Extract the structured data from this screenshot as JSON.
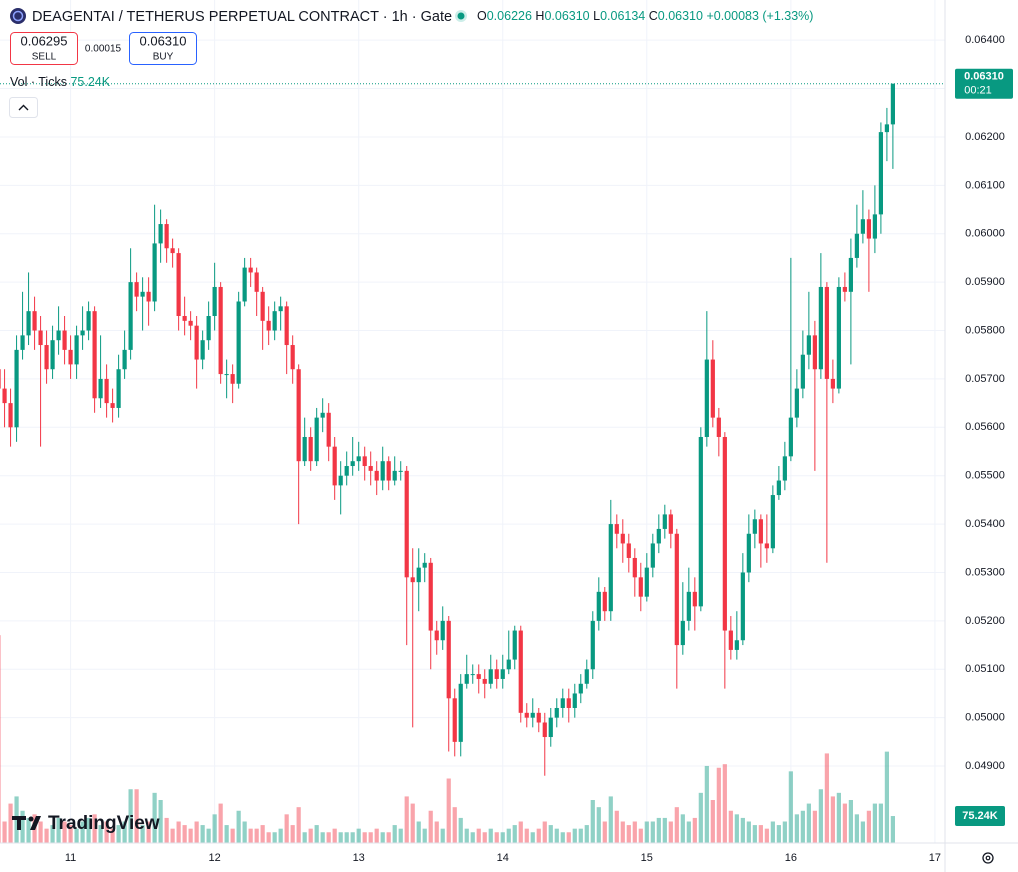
{
  "chart_data": {
    "type": "candlestick",
    "title": "DEAGENTAI / TETHERUS PERPETUAL CONTRACT · 1h · Gate",
    "ohlc_legend": [
      {
        "key": "O",
        "value": "0.06226"
      },
      {
        "key": "H",
        "value": "0.06310"
      },
      {
        "key": "L",
        "value": "0.06134"
      },
      {
        "key": "C",
        "value": "0.06310"
      }
    ],
    "change_text": "+0.00083 (+1.33%)",
    "sell": {
      "price": "0.06295",
      "label": "SELL"
    },
    "spread": "0.00015",
    "buy": {
      "price": "0.06310",
      "label": "BUY"
    },
    "volume_legend": "Vol · Ticks",
    "volume_last_label": "75.24K",
    "last_price_label": "0.06310",
    "countdown": "00:21",
    "logo": "TradingView",
    "up_color": "#089981",
    "down_color": "#f23645",
    "grid": true,
    "xlim": [
      10.51,
      17.07
    ],
    "xticks": [
      11,
      12,
      13,
      14,
      15,
      16,
      17
    ],
    "ylim": [
      0.04741,
      0.06483
    ],
    "yticks": [
      {
        "value": 0.064,
        "label": "0.06400"
      },
      {
        "value": 0.063,
        "label": "0.06300"
      },
      {
        "value": 0.062,
        "label": "0.06200"
      },
      {
        "value": 0.061,
        "label": "0.06100"
      },
      {
        "value": 0.06,
        "label": "0.06000"
      },
      {
        "value": 0.059,
        "label": "0.05900"
      },
      {
        "value": 0.058,
        "label": "0.05800"
      },
      {
        "value": 0.057,
        "label": "0.05700"
      },
      {
        "value": 0.056,
        "label": "0.05600"
      },
      {
        "value": 0.055,
        "label": "0.05500"
      },
      {
        "value": 0.054,
        "label": "0.05400"
      },
      {
        "value": 0.053,
        "label": "0.05300"
      },
      {
        "value": 0.052,
        "label": "0.05200"
      },
      {
        "value": 0.051,
        "label": "0.05100"
      },
      {
        "value": 0.05,
        "label": "0.05000"
      },
      {
        "value": 0.049,
        "label": "0.04900"
      }
    ],
    "volume_ylim": [
      0,
      600
    ],
    "x": [
      10.5,
      10.5417,
      10.5833,
      10.625,
      10.6667,
      10.7083,
      10.75,
      10.7917,
      10.8333,
      10.875,
      10.9167,
      10.9583,
      11,
      11.0417,
      11.0833,
      11.125,
      11.1667,
      11.2083,
      11.25,
      11.2917,
      11.3333,
      11.375,
      11.4167,
      11.4583,
      11.5,
      11.5417,
      11.5833,
      11.625,
      11.6667,
      11.7083,
      11.75,
      11.7917,
      11.8333,
      11.875,
      11.9167,
      11.9583,
      12,
      12.0417,
      12.0833,
      12.125,
      12.1667,
      12.2083,
      12.25,
      12.2917,
      12.3333,
      12.375,
      12.4167,
      12.4583,
      12.5,
      12.5417,
      12.5833,
      12.625,
      12.6667,
      12.7083,
      12.75,
      12.7917,
      12.8333,
      12.875,
      12.9167,
      12.9583,
      13,
      13.0417,
      13.0833,
      13.125,
      13.1667,
      13.2083,
      13.25,
      13.2917,
      13.3333,
      13.375,
      13.4167,
      13.4583,
      13.5,
      13.5417,
      13.5833,
      13.625,
      13.6667,
      13.7083,
      13.75,
      13.7917,
      13.8333,
      13.875,
      13.9167,
      13.9583,
      14,
      14.0417,
      14.0833,
      14.125,
      14.1667,
      14.2083,
      14.25,
      14.2917,
      14.3333,
      14.375,
      14.4167,
      14.4583,
      14.5,
      14.5417,
      14.5833,
      14.625,
      14.6667,
      14.7083,
      14.75,
      14.7917,
      14.8333,
      14.875,
      14.9167,
      14.9583,
      15,
      15.0417,
      15.0833,
      15.125,
      15.1667,
      15.2083,
      15.25,
      15.2917,
      15.3333,
      15.375,
      15.4167,
      15.4583,
      15.5,
      15.5417,
      15.5833,
      15.625,
      15.6667,
      15.7083,
      15.75,
      15.7917,
      15.8333,
      15.875,
      15.9167,
      15.9583,
      16,
      16.0417,
      16.0833,
      16.125,
      16.1667,
      16.2083,
      16.25,
      16.2917,
      16.3333,
      16.375,
      16.4167,
      16.4583,
      16.5,
      16.5417,
      16.5833,
      16.625,
      16.6667,
      16.7083
    ],
    "open": [
      0.0572,
      0.0568,
      0.0565,
      0.056,
      0.0576,
      0.0579,
      0.0584,
      0.058,
      0.0577,
      0.0572,
      0.0578,
      0.058,
      0.0576,
      0.0573,
      0.0579,
      0.058,
      0.0584,
      0.0566,
      0.057,
      0.0565,
      0.0564,
      0.0572,
      0.0576,
      0.059,
      0.0587,
      0.0588,
      0.0586,
      0.0598,
      0.0602,
      0.0597,
      0.0596,
      0.0583,
      0.0582,
      0.0581,
      0.0574,
      0.0578,
      0.0583,
      0.0589,
      0.0571,
      0.0571,
      0.0569,
      0.0586,
      0.0593,
      0.0592,
      0.0588,
      0.0582,
      0.058,
      0.0584,
      0.0585,
      0.0577,
      0.0572,
      0.0553,
      0.0558,
      0.0553,
      0.0562,
      0.0563,
      0.0556,
      0.0548,
      0.055,
      0.0552,
      0.0553,
      0.0554,
      0.0552,
      0.0551,
      0.0549,
      0.0553,
      0.0549,
      0.0551,
      0.0551,
      0.0529,
      0.0528,
      0.0531,
      0.0532,
      0.0518,
      0.0516,
      0.052,
      0.0504,
      0.0495,
      0.0507,
      0.0509,
      0.0509,
      0.0508,
      0.0507,
      0.051,
      0.0508,
      0.051,
      0.0512,
      0.0518,
      0.0501,
      0.05,
      0.0501,
      0.0499,
      0.0496,
      0.05,
      0.0502,
      0.0504,
      0.0502,
      0.0505,
      0.0507,
      0.051,
      0.052,
      0.0526,
      0.0522,
      0.054,
      0.0538,
      0.0536,
      0.0533,
      0.0529,
      0.0525,
      0.0531,
      0.0536,
      0.0539,
      0.0542,
      0.0538,
      0.0515,
      0.052,
      0.0526,
      0.0523,
      0.0558,
      0.0574,
      0.0562,
      0.0558,
      0.0518,
      0.0514,
      0.0516,
      0.053,
      0.0538,
      0.0541,
      0.0536,
      0.0535,
      0.0546,
      0.0549,
      0.0554,
      0.0562,
      0.0568,
      0.0575,
      0.0579,
      0.0572,
      0.0589,
      0.057,
      0.0568,
      0.0589,
      0.0588,
      0.0595,
      0.06,
      0.0603,
      0.0599,
      0.0604,
      0.0621,
      0.06226
    ],
    "high": [
      0.0575,
      0.0572,
      0.0568,
      0.0579,
      0.0588,
      0.0592,
      0.0587,
      0.0583,
      0.058,
      0.0581,
      0.0585,
      0.0583,
      0.0579,
      0.0581,
      0.0585,
      0.0586,
      0.0585,
      0.0579,
      0.0573,
      0.0568,
      0.0575,
      0.058,
      0.0597,
      0.0592,
      0.0591,
      0.0591,
      0.0606,
      0.0605,
      0.0603,
      0.0599,
      0.0597,
      0.0587,
      0.0584,
      0.0583,
      0.058,
      0.0586,
      0.0594,
      0.059,
      0.0574,
      0.0573,
      0.0588,
      0.0595,
      0.0595,
      0.0593,
      0.0589,
      0.0585,
      0.0586,
      0.0587,
      0.0586,
      0.0579,
      0.0573,
      0.0562,
      0.056,
      0.0564,
      0.0566,
      0.0565,
      0.0558,
      0.0553,
      0.0555,
      0.0558,
      0.0557,
      0.0556,
      0.0555,
      0.0553,
      0.0556,
      0.0554,
      0.0554,
      0.0553,
      0.0552,
      0.0535,
      0.0535,
      0.0534,
      0.0533,
      0.052,
      0.0523,
      0.0521,
      0.0506,
      0.0509,
      0.0513,
      0.0511,
      0.0511,
      0.051,
      0.0513,
      0.0512,
      0.0513,
      0.0518,
      0.0519,
      0.0519,
      0.0503,
      0.0504,
      0.0502,
      0.0501,
      0.0502,
      0.0504,
      0.0506,
      0.0506,
      0.0507,
      0.0509,
      0.0512,
      0.0522,
      0.0529,
      0.0527,
      0.0545,
      0.0542,
      0.0541,
      0.0538,
      0.0535,
      0.0532,
      0.0534,
      0.0538,
      0.0542,
      0.0544,
      0.0543,
      0.0539,
      0.0528,
      0.0531,
      0.0529,
      0.056,
      0.0584,
      0.0578,
      0.0564,
      0.0559,
      0.0521,
      0.0522,
      0.0534,
      0.0542,
      0.0543,
      0.0542,
      0.0542,
      0.0548,
      0.0552,
      0.0557,
      0.0595,
      0.0572,
      0.058,
      0.0588,
      0.0582,
      0.0596,
      0.059,
      0.0574,
      0.0591,
      0.0592,
      0.0599,
      0.0606,
      0.0609,
      0.0605,
      0.061,
      0.0623,
      0.0626,
      0.0631
    ],
    "low": [
      0.0565,
      0.056,
      0.0556,
      0.0557,
      0.0574,
      0.0577,
      0.0576,
      0.0556,
      0.0569,
      0.057,
      0.0575,
      0.0573,
      0.057,
      0.057,
      0.0576,
      0.0578,
      0.0563,
      0.0564,
      0.0562,
      0.0561,
      0.0562,
      0.057,
      0.0574,
      0.0584,
      0.058,
      0.0581,
      0.0584,
      0.0594,
      0.0594,
      0.0593,
      0.058,
      0.0579,
      0.0578,
      0.0568,
      0.0572,
      0.0576,
      0.058,
      0.0569,
      0.0566,
      0.0565,
      0.0568,
      0.0585,
      0.0589,
      0.0583,
      0.0576,
      0.0577,
      0.0578,
      0.058,
      0.0571,
      0.0569,
      0.054,
      0.0552,
      0.0551,
      0.0552,
      0.0559,
      0.0553,
      0.0545,
      0.0542,
      0.0548,
      0.055,
      0.0551,
      0.0549,
      0.0548,
      0.0546,
      0.0547,
      0.0547,
      0.0548,
      0.0549,
      0.0515,
      0.0498,
      0.0522,
      0.0528,
      0.051,
      0.0513,
      0.0514,
      0.0493,
      0.0492,
      0.0492,
      0.0506,
      0.0507,
      0.0505,
      0.0504,
      0.0506,
      0.0506,
      0.0506,
      0.0509,
      0.051,
      0.0499,
      0.0498,
      0.0498,
      0.0497,
      0.0488,
      0.0494,
      0.0498,
      0.05,
      0.0499,
      0.05,
      0.0503,
      0.0506,
      0.0508,
      0.0518,
      0.052,
      0.052,
      0.0535,
      0.0532,
      0.053,
      0.0525,
      0.0522,
      0.0524,
      0.0529,
      0.0534,
      0.0537,
      0.0535,
      0.0506,
      0.0513,
      0.0518,
      0.0518,
      0.0522,
      0.0556,
      0.056,
      0.0554,
      0.0506,
      0.0512,
      0.0512,
      0.0515,
      0.0528,
      0.0535,
      0.0531,
      0.0532,
      0.0534,
      0.0545,
      0.0547,
      0.0553,
      0.056,
      0.0566,
      0.0572,
      0.0551,
      0.057,
      0.0532,
      0.0565,
      0.0567,
      0.0586,
      0.0573,
      0.0593,
      0.0598,
      0.0588,
      0.0596,
      0.06,
      0.0615,
      0.06134
    ],
    "close": [
      0.0568,
      0.0565,
      0.056,
      0.0576,
      0.0579,
      0.0584,
      0.058,
      0.0577,
      0.0572,
      0.0578,
      0.058,
      0.0576,
      0.0573,
      0.0579,
      0.058,
      0.0584,
      0.0566,
      0.057,
      0.0565,
      0.0564,
      0.0572,
      0.0576,
      0.059,
      0.0587,
      0.0588,
      0.0586,
      0.0598,
      0.0602,
      0.0597,
      0.0596,
      0.0583,
      0.0582,
      0.0581,
      0.0574,
      0.0578,
      0.0583,
      0.0589,
      0.0571,
      0.0571,
      0.0569,
      0.0586,
      0.0593,
      0.0592,
      0.0588,
      0.0582,
      0.058,
      0.0584,
      0.0585,
      0.0577,
      0.0572,
      0.0553,
      0.0558,
      0.0553,
      0.0562,
      0.0563,
      0.0556,
      0.0548,
      0.055,
      0.0552,
      0.0553,
      0.0554,
      0.0552,
      0.0551,
      0.0549,
      0.0553,
      0.0549,
      0.0551,
      0.0551,
      0.0529,
      0.0528,
      0.0531,
      0.0532,
      0.0518,
      0.0516,
      0.052,
      0.0504,
      0.0495,
      0.0507,
      0.0509,
      0.0509,
      0.0508,
      0.0507,
      0.051,
      0.0508,
      0.051,
      0.0512,
      0.0518,
      0.0501,
      0.05,
      0.0501,
      0.0499,
      0.0496,
      0.05,
      0.0502,
      0.0504,
      0.0502,
      0.0505,
      0.0507,
      0.051,
      0.052,
      0.0526,
      0.0522,
      0.054,
      0.0538,
      0.0536,
      0.0533,
      0.0529,
      0.0525,
      0.0531,
      0.0536,
      0.0539,
      0.0542,
      0.0538,
      0.0515,
      0.052,
      0.0526,
      0.0523,
      0.0558,
      0.0574,
      0.0562,
      0.0558,
      0.0518,
      0.0514,
      0.0516,
      0.053,
      0.0538,
      0.0541,
      0.0536,
      0.0535,
      0.0546,
      0.0549,
      0.0554,
      0.0562,
      0.0568,
      0.0575,
      0.0579,
      0.0572,
      0.0589,
      0.057,
      0.0568,
      0.0589,
      0.0588,
      0.0595,
      0.06,
      0.0603,
      0.0599,
      0.0604,
      0.0621,
      0.06226,
      0.0631
    ],
    "volume": [
      580,
      60,
      110,
      130,
      90,
      70,
      80,
      60,
      40,
      50,
      70,
      60,
      50,
      40,
      60,
      70,
      80,
      50,
      60,
      40,
      50,
      60,
      150,
      150,
      50,
      60,
      140,
      120,
      70,
      40,
      60,
      50,
      40,
      60,
      50,
      40,
      80,
      110,
      50,
      40,
      90,
      60,
      40,
      40,
      50,
      30,
      30,
      40,
      80,
      50,
      100,
      30,
      40,
      50,
      30,
      30,
      40,
      30,
      30,
      30,
      40,
      30,
      30,
      40,
      30,
      30,
      50,
      40,
      130,
      110,
      60,
      40,
      90,
      60,
      40,
      180,
      100,
      70,
      40,
      30,
      40,
      30,
      40,
      30,
      30,
      40,
      50,
      60,
      40,
      30,
      40,
      60,
      50,
      40,
      30,
      30,
      40,
      40,
      50,
      120,
      100,
      60,
      130,
      90,
      60,
      50,
      60,
      40,
      60,
      60,
      70,
      70,
      60,
      100,
      80,
      60,
      70,
      140,
      215,
      120,
      210,
      220,
      90,
      80,
      70,
      60,
      50,
      50,
      40,
      60,
      50,
      60,
      200,
      80,
      90,
      110,
      90,
      150,
      250,
      130,
      140,
      110,
      120,
      80,
      60,
      90,
      110,
      110,
      255,
      75.24
    ]
  }
}
